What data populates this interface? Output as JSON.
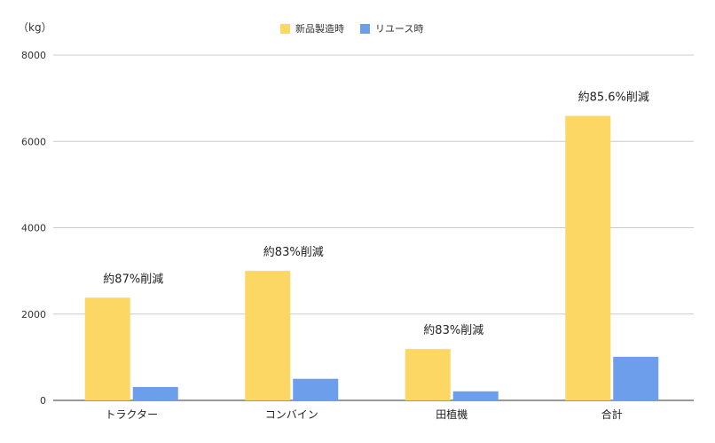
{
  "chart_data": {
    "type": "bar",
    "unit_label": "（kg）",
    "categories": [
      "トラクター",
      "コンバイン",
      "田植機",
      "合計"
    ],
    "series": [
      {
        "name": "新品製造時",
        "color": "#fdd764",
        "values": [
          2380,
          3000,
          1190,
          6590
        ]
      },
      {
        "name": "リユース時",
        "color": "#6d9eeb",
        "values": [
          310,
          500,
          210,
          1010
        ]
      }
    ],
    "annotations": [
      "約87%削減",
      "約83%削減",
      "約83%削減",
      "約85.6%削減"
    ],
    "yticks": [
      0,
      2000,
      4000,
      6000,
      8000
    ],
    "ylim": [
      0,
      8000
    ],
    "legend_position": "top-center",
    "grid": true
  }
}
